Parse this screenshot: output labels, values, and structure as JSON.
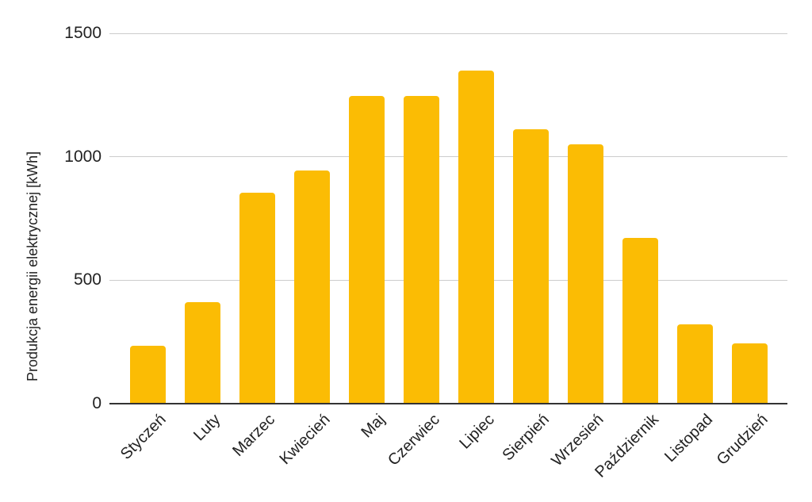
{
  "chart_data": {
    "type": "bar",
    "title": "",
    "categories": [
      "Styczeń",
      "Luty",
      "Marzec",
      "Kwiecień",
      "Maj",
      "Czerwiec",
      "Lipiec",
      "Sierpień",
      "Wrzesień",
      "Październik",
      "Listopad",
      "Grudzień"
    ],
    "values": [
      235,
      410,
      855,
      945,
      1245,
      1245,
      1350,
      1110,
      1050,
      670,
      320,
      245
    ],
    "xlabel": "",
    "ylabel": "Produkcja energii elektrycznej [kWh]",
    "ylim": [
      0,
      1500
    ],
    "yticks": [
      0,
      500,
      1000,
      1500
    ],
    "grid": true,
    "legend": "none",
    "x_tick_rotation_deg": -45,
    "bar_color": "#FBBC04",
    "gridline_color": "#CCCCCC",
    "axis_line_color": "#333333",
    "label_color": "#222222",
    "background_color": "#FFFFFF"
  }
}
